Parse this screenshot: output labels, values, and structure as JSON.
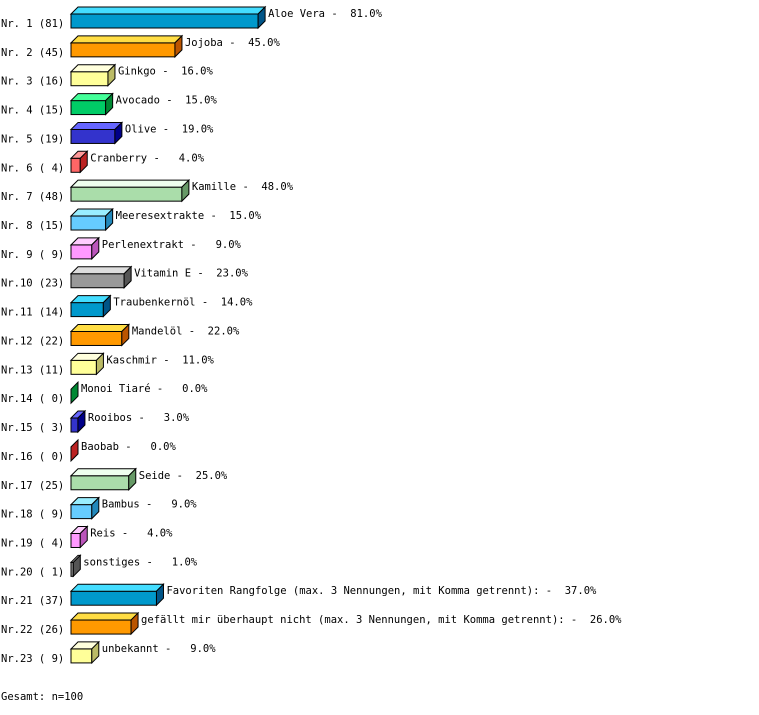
{
  "chart_data": {
    "type": "bar",
    "orientation": "horizontal",
    "style": "3d",
    "grid": false,
    "xlim": [
      0,
      100
    ],
    "unit": "%",
    "categories": [
      "Nr. 1",
      "Nr. 2",
      "Nr. 3",
      "Nr. 4",
      "Nr. 5",
      "Nr. 6",
      "Nr. 7",
      "Nr. 8",
      "Nr. 9",
      "Nr.10",
      "Nr.11",
      "Nr.12",
      "Nr.13",
      "Nr.14",
      "Nr.15",
      "Nr.16",
      "Nr.17",
      "Nr.18",
      "Nr.19",
      "Nr.20",
      "Nr.21",
      "Nr.22",
      "Nr.23"
    ],
    "counts": [
      81,
      45,
      16,
      15,
      19,
      4,
      48,
      15,
      9,
      23,
      14,
      22,
      11,
      0,
      3,
      0,
      25,
      9,
      4,
      1,
      37,
      26,
      9
    ],
    "labels": [
      "Aloe Vera",
      "Jojoba",
      "Ginkgo",
      "Avocado",
      "Olive",
      "Cranberry",
      "Kamille",
      "Meeresextrakte",
      "Perlenextrakt",
      "Vitamin E",
      "Traubenkernöl",
      "Mandelöl",
      "Kaschmir",
      "Monoi Tiaré",
      "Rooibos",
      "Baobab",
      "Seide",
      "Bambus",
      "Reis",
      "sonstiges",
      "Favoriten Rangfolge (max. 3 Nennungen, mit Komma getrennt):",
      "gefällt mir überhaupt nicht (max. 3 Nennungen, mit Komma getrennt):",
      "unbekannt"
    ],
    "values": [
      81.0,
      45.0,
      16.0,
      15.0,
      19.0,
      4.0,
      48.0,
      15.0,
      9.0,
      23.0,
      14.0,
      22.0,
      11.0,
      0.0,
      3.0,
      0.0,
      25.0,
      9.0,
      4.0,
      1.0,
      37.0,
      26.0,
      9.0
    ],
    "palette": [
      {
        "front": "#0099cc",
        "top": "#44ddff",
        "side": "#005588"
      },
      {
        "front": "#ff9900",
        "top": "#ffdd44",
        "side": "#bb5500"
      },
      {
        "front": "#ffff99",
        "top": "#ffffdd",
        "side": "#bbbb66"
      },
      {
        "front": "#00cc66",
        "top": "#44ff99",
        "side": "#008833"
      },
      {
        "front": "#3333cc",
        "top": "#6666ff",
        "side": "#000088"
      },
      {
        "front": "#ff6666",
        "top": "#ff9999",
        "side": "#bb2222"
      },
      {
        "front": "#aaddaa",
        "top": "#eeffee",
        "side": "#669966"
      },
      {
        "front": "#66ccff",
        "top": "#99eeff",
        "side": "#2288bb"
      },
      {
        "front": "#ff99ff",
        "top": "#ffccff",
        "side": "#bb55bb"
      },
      {
        "front": "#999999",
        "top": "#dddddd",
        "side": "#555555"
      }
    ]
  },
  "footer": {
    "total": "Gesamt: n=100"
  }
}
